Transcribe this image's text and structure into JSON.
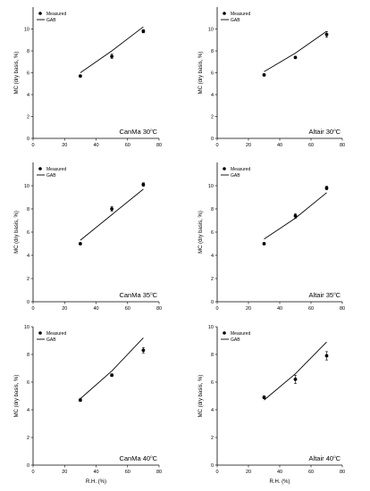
{
  "shared": {
    "legend_measured": "Measured",
    "legend_gab": "GAB",
    "ylabel": "MC (dry basis, %)",
    "xlabel": "R.H. (%)",
    "x_ticks": [
      "0",
      "20",
      "40",
      "60",
      "80"
    ],
    "y_ticks": [
      "0",
      "2",
      "4",
      "6",
      "8",
      "10"
    ],
    "colors": {
      "line": "#000000",
      "point": "#000000"
    }
  },
  "chart_data": [
    {
      "type": "scatter",
      "title": "CanMa 30",
      "title_sup": "o",
      "title_unit": "C",
      "xlim": [
        0,
        80
      ],
      "ylim": [
        0,
        12
      ],
      "show_xlabel": false,
      "series": [
        {
          "name": "Measured",
          "x": [
            30,
            50,
            70
          ],
          "y": [
            5.7,
            7.5,
            9.8
          ],
          "err": [
            0.1,
            0.2,
            0.15
          ]
        },
        {
          "name": "GAB",
          "x": [
            30,
            50,
            70
          ],
          "y": [
            6.0,
            8.0,
            10.2
          ]
        }
      ]
    },
    {
      "type": "scatter",
      "title": "Altair 30",
      "title_sup": "o",
      "title_unit": "C",
      "xlim": [
        0,
        80
      ],
      "ylim": [
        0,
        12
      ],
      "show_xlabel": false,
      "series": [
        {
          "name": "Measured",
          "x": [
            30,
            50,
            70
          ],
          "y": [
            5.8,
            7.4,
            9.5
          ],
          "err": [
            0.1,
            0.1,
            0.25
          ]
        },
        {
          "name": "GAB",
          "x": [
            30,
            50,
            70
          ],
          "y": [
            6.1,
            7.8,
            9.8
          ]
        }
      ]
    },
    {
      "type": "scatter",
      "title": "CanMa 35",
      "title_sup": "o",
      "title_unit": "C",
      "xlim": [
        0,
        80
      ],
      "ylim": [
        0,
        12
      ],
      "show_xlabel": false,
      "series": [
        {
          "name": "Measured",
          "x": [
            30,
            50,
            70
          ],
          "y": [
            5.0,
            8.0,
            10.1
          ],
          "err": [
            0.1,
            0.2,
            0.15
          ]
        },
        {
          "name": "GAB",
          "x": [
            30,
            50,
            70
          ],
          "y": [
            5.3,
            7.5,
            9.7
          ]
        }
      ]
    },
    {
      "type": "scatter",
      "title": "Altair 35",
      "title_sup": "o",
      "title_unit": "C",
      "xlim": [
        0,
        80
      ],
      "ylim": [
        0,
        12
      ],
      "show_xlabel": false,
      "series": [
        {
          "name": "Measured",
          "x": [
            30,
            50,
            70
          ],
          "y": [
            5.0,
            7.4,
            9.8
          ],
          "err": [
            0.1,
            0.2,
            0.15
          ]
        },
        {
          "name": "GAB",
          "x": [
            30,
            50,
            70
          ],
          "y": [
            5.4,
            7.2,
            9.4
          ]
        }
      ]
    },
    {
      "type": "scatter",
      "title": "CanMa 40",
      "title_sup": "o",
      "title_unit": "C",
      "xlim": [
        0,
        80
      ],
      "ylim": [
        0,
        10
      ],
      "show_xlabel": true,
      "series": [
        {
          "name": "Measured",
          "x": [
            30,
            50,
            70
          ],
          "y": [
            4.7,
            6.5,
            8.3
          ],
          "err": [
            0.1,
            0.1,
            0.2
          ]
        },
        {
          "name": "GAB",
          "x": [
            30,
            50,
            70
          ],
          "y": [
            4.8,
            6.8,
            9.2
          ]
        }
      ]
    },
    {
      "type": "scatter",
      "title": "Altair 40",
      "title_sup": "o",
      "title_unit": "C",
      "xlim": [
        0,
        80
      ],
      "ylim": [
        0,
        10
      ],
      "show_xlabel": true,
      "series": [
        {
          "name": "Measured",
          "x": [
            30,
            50,
            70
          ],
          "y": [
            4.9,
            6.2,
            7.9
          ],
          "err": [
            0.1,
            0.3,
            0.3
          ]
        },
        {
          "name": "GAB",
          "x": [
            30,
            50,
            70
          ],
          "y": [
            4.7,
            6.6,
            8.9
          ]
        }
      ]
    }
  ]
}
